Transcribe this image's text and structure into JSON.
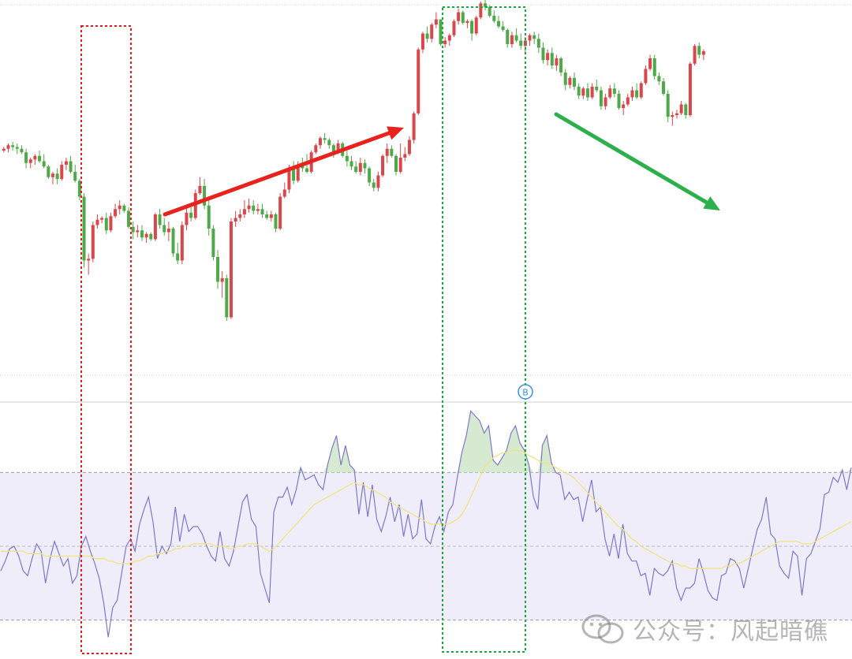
{
  "chart_data": [
    {
      "type": "candlestick",
      "panel": "price",
      "title": "",
      "xlabel": "",
      "ylabel": "",
      "ylim": [
        0,
        100
      ],
      "grid": false,
      "candles": [
        [
          62,
          63,
          61.5,
          62.5
        ],
        [
          62.5,
          64,
          61.5,
          63.5
        ],
        [
          63.5,
          64.5,
          62,
          63
        ],
        [
          63,
          64,
          61,
          62.5
        ],
        [
          62.5,
          63.5,
          61,
          61.5
        ],
        [
          61.5,
          62.5,
          57,
          58.5
        ],
        [
          58.5,
          60,
          57,
          59.5
        ],
        [
          59.5,
          61,
          58,
          60.5
        ],
        [
          60.5,
          62,
          58.5,
          59
        ],
        [
          59,
          61,
          57,
          57.5
        ],
        [
          57.5,
          58,
          54,
          54.5
        ],
        [
          54.5,
          56,
          52.5,
          55.5
        ],
        [
          55.5,
          57,
          52.5,
          54
        ],
        [
          54,
          59,
          53.5,
          58
        ],
        [
          58,
          60,
          56.5,
          59
        ],
        [
          59,
          60.5,
          55.5,
          56
        ],
        [
          56,
          58,
          53,
          53.5
        ],
        [
          53.5,
          54,
          48,
          49
        ],
        [
          49,
          50,
          29,
          31
        ],
        [
          31,
          33,
          27,
          31.5
        ],
        [
          31.5,
          42,
          30.5,
          41
        ],
        [
          41,
          44,
          40,
          42.5
        ],
        [
          42.5,
          43.5,
          41.5,
          43
        ],
        [
          43,
          44.5,
          38.5,
          39.5
        ],
        [
          39.5,
          44.5,
          39,
          43.5
        ],
        [
          43.5,
          47,
          43,
          45.5
        ],
        [
          45.5,
          48,
          44,
          46.5
        ],
        [
          46.5,
          47,
          44.5,
          45
        ],
        [
          45,
          46,
          40,
          40.5
        ],
        [
          40.5,
          42,
          37,
          39
        ],
        [
          39,
          41,
          37.5,
          39.5
        ],
        [
          39.5,
          41,
          36.5,
          37.5
        ],
        [
          37.5,
          39,
          36,
          38.5
        ],
        [
          38.5,
          39,
          36.5,
          37
        ],
        [
          37,
          44.5,
          36.5,
          44
        ],
        [
          44,
          45.5,
          40,
          41
        ],
        [
          41,
          43,
          38,
          39
        ],
        [
          39,
          42,
          36.5,
          40
        ],
        [
          40,
          40.5,
          32,
          33
        ],
        [
          33,
          36,
          30,
          31
        ],
        [
          31,
          42,
          30,
          41
        ],
        [
          41,
          46,
          39.5,
          44.5
        ],
        [
          44.5,
          46,
          42,
          43
        ],
        [
          43,
          51,
          42.5,
          50
        ],
        [
          50,
          54.5,
          49.5,
          52
        ],
        [
          52,
          54,
          45.5,
          46.5
        ],
        [
          46.5,
          48,
          38,
          40
        ],
        [
          40,
          41,
          31,
          32
        ],
        [
          32,
          34,
          23,
          25
        ],
        [
          25,
          28,
          20.5,
          26
        ],
        [
          26,
          27,
          14,
          15
        ],
        [
          15,
          43,
          14.5,
          42
        ],
        [
          42,
          45,
          40.5,
          43
        ],
        [
          43,
          45.5,
          42,
          44
        ],
        [
          44,
          48,
          43,
          45.5
        ],
        [
          45.5,
          48.5,
          44.5,
          46.5
        ],
        [
          46.5,
          48,
          44,
          45
        ],
        [
          45,
          47,
          44,
          45.5
        ],
        [
          45.5,
          47,
          43,
          44
        ],
        [
          44,
          45,
          42.5,
          43
        ],
        [
          43,
          45,
          42,
          44
        ],
        [
          44,
          44.5,
          39,
          40
        ],
        [
          40,
          50,
          39.5,
          49
        ],
        [
          49,
          53,
          48.5,
          51
        ],
        [
          51,
          58,
          50,
          57
        ],
        [
          57,
          59,
          52.5,
          53.5
        ],
        [
          53.5,
          59,
          53,
          58
        ],
        [
          58,
          60,
          56,
          57
        ],
        [
          57,
          61,
          55.5,
          56
        ],
        [
          56,
          62,
          55.5,
          61.5
        ],
        [
          61.5,
          64,
          61,
          63.5
        ],
        [
          63.5,
          66,
          62.5,
          65.5
        ],
        [
          65.5,
          67,
          64,
          65
        ],
        [
          65,
          65.5,
          62.5,
          63.5
        ],
        [
          63.5,
          64,
          60,
          61.5
        ],
        [
          61.5,
          65,
          61,
          64
        ],
        [
          64,
          64.5,
          60,
          60.5
        ],
        [
          60.5,
          62,
          57.5,
          59
        ],
        [
          59,
          60.5,
          56.5,
          57.5
        ],
        [
          57.5,
          59,
          55.5,
          56
        ],
        [
          56,
          60,
          55,
          58.5
        ],
        [
          58.5,
          59.5,
          55.5,
          57
        ],
        [
          57,
          57.5,
          52,
          53
        ],
        [
          53,
          54,
          50.5,
          51.5
        ],
        [
          51.5,
          56,
          50.5,
          55
        ],
        [
          55,
          61,
          54.5,
          60.5
        ],
        [
          60.5,
          64,
          58.5,
          62.5
        ],
        [
          62.5,
          63.5,
          60,
          60.5
        ],
        [
          60.5,
          61,
          55,
          56
        ],
        [
          56,
          64,
          55.5,
          60
        ],
        [
          60,
          63,
          59,
          61
        ],
        [
          61,
          66,
          60.5,
          65
        ],
        [
          65,
          73,
          64,
          72.5
        ],
        [
          72.5,
          91,
          72,
          90.5
        ],
        [
          90.5,
          95.5,
          89.5,
          95
        ],
        [
          95,
          97,
          92.5,
          93.5
        ],
        [
          93.5,
          98,
          92.5,
          97.5
        ],
        [
          97.5,
          101,
          96.5,
          99
        ],
        [
          99,
          98,
          91.5,
          92
        ],
        [
          92,
          94,
          91,
          93
        ],
        [
          93,
          95,
          91.5,
          94.5
        ],
        [
          94.5,
          99,
          94,
          98.5
        ],
        [
          98.5,
          102,
          97.5,
          101
        ],
        [
          101,
          101.5,
          97.5,
          98
        ],
        [
          98,
          99,
          96.5,
          98.5
        ],
        [
          98.5,
          99,
          93,
          95
        ],
        [
          95,
          100,
          94.5,
          99.5
        ],
        [
          99.5,
          104,
          99,
          103.5
        ],
        [
          103.5,
          105,
          101.5,
          102.5
        ],
        [
          102.5,
          103,
          99.5,
          100
        ],
        [
          100,
          101.5,
          98,
          98.5
        ],
        [
          98.5,
          100,
          96.5,
          97
        ],
        [
          97,
          98.5,
          95.5,
          96
        ],
        [
          96,
          96.5,
          91,
          92
        ],
        [
          92,
          95.5,
          91,
          94.5
        ],
        [
          94.5,
          96.5,
          92.5,
          93
        ],
        [
          93,
          95,
          90.5,
          91.5
        ],
        [
          91.5,
          94,
          89.5,
          93
        ],
        [
          93,
          95,
          91.5,
          94.5
        ],
        [
          94.5,
          95.5,
          92,
          93.5
        ],
        [
          93.5,
          95,
          89.5,
          91
        ],
        [
          91,
          92.5,
          86.5,
          87.5
        ],
        [
          87.5,
          90.5,
          86,
          89.5
        ],
        [
          89.5,
          91,
          85,
          86
        ],
        [
          86,
          89,
          84.5,
          88
        ],
        [
          88,
          88.5,
          83,
          84
        ],
        [
          84,
          85,
          79,
          80.5
        ],
        [
          80.5,
          83,
          79.5,
          82.5
        ],
        [
          82.5,
          84,
          79,
          80
        ],
        [
          80,
          81,
          76.5,
          77.5
        ],
        [
          77.5,
          80,
          76.5,
          79.5
        ],
        [
          79.5,
          81,
          76,
          77
        ],
        [
          77,
          81,
          76.5,
          80
        ],
        [
          80,
          82,
          78.5,
          79
        ],
        [
          79,
          80,
          73.5,
          74.5
        ],
        [
          74.5,
          78,
          73.5,
          77
        ],
        [
          77,
          80.5,
          76.5,
          79.5
        ],
        [
          79.5,
          81,
          77,
          78
        ],
        [
          78,
          79,
          73.5,
          74
        ],
        [
          74,
          76,
          72,
          75
        ],
        [
          75,
          78,
          74.5,
          77
        ],
        [
          77,
          80,
          76,
          79
        ],
        [
          79,
          81,
          76.5,
          77
        ],
        [
          77,
          81.5,
          76.5,
          81
        ],
        [
          81,
          86,
          80.5,
          85
        ],
        [
          85,
          89,
          84.5,
          88
        ],
        [
          88,
          89,
          82,
          83
        ],
        [
          83,
          84,
          80.5,
          81.5
        ],
        [
          81.5,
          82.5,
          77.5,
          78
        ],
        [
          78,
          79,
          70,
          71.5
        ],
        [
          71.5,
          73,
          69,
          72
        ],
        [
          72,
          73.5,
          71,
          72.5
        ],
        [
          72.5,
          76,
          72,
          75
        ],
        [
          75,
          75.5,
          71,
          72
        ],
        [
          72,
          87,
          71.5,
          86.5
        ],
        [
          86.5,
          92,
          86,
          91.5
        ],
        [
          91.5,
          92.5,
          88,
          89
        ],
        [
          89,
          90.5,
          87.5,
          90
        ]
      ]
    },
    {
      "type": "line",
      "panel": "oscillator",
      "title": "",
      "xlabel": "",
      "ylabel": "",
      "ylim": [
        0,
        100
      ],
      "grid": false,
      "reference_levels": [
        80,
        50,
        20
      ],
      "series": [
        {
          "color": "#7c78c8",
          "values": [
            40,
            44,
            49,
            50,
            46,
            40,
            38,
            45,
            51,
            48,
            35,
            45,
            52,
            47,
            42,
            45,
            35,
            38,
            50,
            54,
            48,
            43,
            37,
            27,
            13,
            25,
            28,
            39,
            50,
            53,
            48,
            59,
            65,
            70,
            60,
            45,
            50,
            47,
            51,
            66,
            52,
            63,
            56,
            58,
            58,
            55,
            50,
            46,
            44,
            56,
            45,
            42,
            48,
            58,
            68,
            71,
            61,
            58,
            39,
            33,
            27,
            64,
            70,
            70,
            74,
            67,
            73,
            82,
            77,
            78,
            79,
            75,
            73,
            83,
            90,
            95,
            83,
            91,
            83,
            81,
            63,
            76,
            62,
            75,
            61,
            56,
            62,
            70,
            60,
            67,
            54,
            63,
            53,
            55,
            69,
            53,
            51,
            58,
            62,
            56,
            64,
            67,
            78,
            88,
            95,
            105,
            103,
            101,
            96,
            99,
            85,
            83,
            86,
            89,
            96,
            99,
            92,
            89,
            83,
            70,
            65,
            91,
            95,
            84,
            80,
            79,
            69,
            72,
            69,
            70,
            60,
            69,
            77,
            64,
            66,
            53,
            46,
            55,
            45,
            59,
            47,
            44,
            44,
            38,
            39,
            30,
            41,
            39,
            38,
            40,
            44,
            33,
            28,
            33,
            33,
            35,
            45,
            39,
            32,
            29,
            28,
            38,
            39,
            45,
            44,
            41,
            33,
            41,
            49,
            57,
            61,
            70,
            55,
            53,
            42,
            39,
            37,
            48,
            46,
            30,
            45,
            47,
            52,
            57,
            71,
            72,
            78,
            76,
            81,
            73,
            82
          ]
        },
        {
          "color": "#f2e27a",
          "values": [
            48,
            48,
            48,
            48,
            48,
            48,
            47,
            47,
            47,
            47,
            46,
            46,
            46,
            46,
            46,
            46,
            46,
            46,
            46,
            46,
            46,
            45,
            45,
            45,
            44,
            44,
            43,
            43,
            43,
            43,
            44,
            44,
            45,
            46,
            46,
            47,
            47,
            48,
            48,
            49,
            49,
            50,
            50,
            51,
            51,
            51,
            51,
            51,
            50,
            50,
            50,
            49,
            49,
            50,
            50,
            51,
            51,
            51,
            50,
            49,
            48,
            49,
            51,
            53,
            55,
            57,
            59,
            61,
            63,
            65,
            67,
            68,
            69,
            70,
            71,
            72,
            73,
            74,
            75,
            76,
            75,
            75,
            74,
            73,
            72,
            71,
            70,
            68,
            67,
            66,
            65,
            64,
            63,
            62,
            61,
            60,
            59,
            59,
            59,
            59,
            59,
            60,
            61,
            63,
            66,
            70,
            74,
            78,
            82,
            84,
            86,
            87,
            88,
            88,
            89,
            89,
            89,
            88,
            87,
            86,
            85,
            84,
            84,
            83,
            82,
            81,
            80,
            79,
            78,
            76,
            74,
            72,
            70,
            68,
            66,
            64,
            62,
            60,
            58,
            57,
            55,
            53,
            52,
            50,
            49,
            48,
            47,
            46,
            45,
            44,
            43,
            43,
            42,
            42,
            41,
            41,
            41,
            41,
            41,
            41,
            41,
            41,
            42,
            42,
            43,
            43,
            44,
            45,
            46,
            47,
            48,
            49,
            50,
            51,
            52,
            52,
            52,
            52,
            52,
            51,
            51,
            51,
            52,
            53,
            54,
            55,
            56,
            57,
            58,
            59,
            60
          ]
        }
      ]
    }
  ],
  "colors": {
    "up_candle": "#d8474b",
    "down_candle": "#4fa84a",
    "red_arrow": "#e8221c",
    "green_arrow": "#2db04b",
    "red_box": "#e21a1a",
    "green_box": "#1aa83d",
    "marker": "#3b8ed8",
    "band_fill": "#efedf9"
  },
  "marker": {
    "label": "B"
  },
  "watermark": {
    "text": "公众号：风起暗礁"
  }
}
